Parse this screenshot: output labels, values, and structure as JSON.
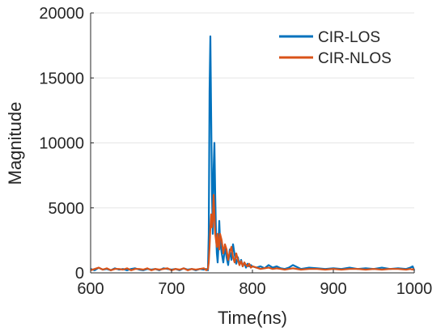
{
  "chart_data": {
    "type": "line",
    "title": "",
    "xlabel": "Time(ns)",
    "ylabel": "Magnitude",
    "xlim": [
      600,
      1000
    ],
    "ylim": [
      0,
      20000
    ],
    "xticks": [
      600,
      700,
      800,
      900,
      1000
    ],
    "yticks": [
      0,
      5000,
      10000,
      15000,
      20000
    ],
    "xtick_labels": [
      "600",
      "700",
      "800",
      "900",
      "1000"
    ],
    "ytick_labels": [
      "0",
      "5000",
      "10000",
      "15000",
      "20000"
    ],
    "grid": "horizontal",
    "legend_position": "top-right",
    "series": [
      {
        "name": "CIR-LOS",
        "color": "#0072BD",
        "x": [
          600,
          605,
          610,
          615,
          620,
          625,
          630,
          635,
          640,
          645,
          650,
          655,
          660,
          665,
          670,
          675,
          680,
          685,
          690,
          695,
          700,
          705,
          710,
          715,
          720,
          725,
          730,
          735,
          740,
          743,
          745,
          746,
          747,
          748,
          749,
          750,
          751,
          752,
          753,
          754,
          755,
          756,
          757,
          758,
          759,
          760,
          762,
          764,
          766,
          768,
          770,
          772,
          774,
          776,
          778,
          780,
          782,
          784,
          786,
          788,
          790,
          792,
          794,
          796,
          798,
          800,
          805,
          810,
          815,
          820,
          825,
          830,
          835,
          840,
          845,
          850,
          860,
          870,
          880,
          890,
          900,
          910,
          920,
          930,
          940,
          950,
          960,
          970,
          980,
          990,
          995,
          998,
          1000
        ],
        "y": [
          300,
          200,
          400,
          250,
          300,
          200,
          350,
          250,
          300,
          200,
          300,
          350,
          250,
          200,
          300,
          250,
          300,
          200,
          350,
          300,
          250,
          300,
          200,
          350,
          250,
          300,
          200,
          300,
          250,
          300,
          200,
          3000,
          14000,
          18200,
          12000,
          6000,
          3000,
          8000,
          10000,
          6000,
          3000,
          1500,
          800,
          2000,
          4000,
          2500,
          1500,
          800,
          2000,
          1200,
          600,
          1800,
          1000,
          2200,
          1400,
          700,
          1200,
          600,
          1000,
          500,
          800,
          400,
          700,
          500,
          600,
          500,
          400,
          500,
          350,
          600,
          400,
          500,
          350,
          300,
          400,
          600,
          300,
          400,
          350,
          300,
          350,
          300,
          400,
          300,
          350,
          300,
          400,
          300,
          350,
          300,
          400,
          500,
          200
        ]
      },
      {
        "name": "CIR-NLOS",
        "color": "#D95319",
        "x": [
          600,
          605,
          610,
          615,
          620,
          625,
          630,
          635,
          640,
          645,
          650,
          655,
          660,
          665,
          670,
          675,
          680,
          685,
          690,
          695,
          700,
          705,
          710,
          715,
          720,
          725,
          730,
          735,
          740,
          743,
          745,
          746,
          747,
          748,
          749,
          750,
          751,
          752,
          753,
          754,
          755,
          756,
          757,
          758,
          759,
          760,
          762,
          764,
          766,
          768,
          770,
          772,
          774,
          776,
          778,
          780,
          782,
          784,
          786,
          788,
          790,
          792,
          794,
          796,
          798,
          800,
          805,
          810,
          815,
          820,
          825,
          830,
          835,
          840,
          845,
          850,
          860,
          870,
          880,
          890,
          900,
          910,
          920,
          930,
          940,
          950,
          960,
          970,
          980,
          990,
          995,
          998,
          1000
        ],
        "y": [
          200,
          300,
          400,
          250,
          350,
          200,
          300,
          300,
          250,
          350,
          200,
          300,
          300,
          250,
          350,
          200,
          300,
          250,
          300,
          350,
          200,
          300,
          250,
          350,
          200,
          300,
          250,
          300,
          350,
          200,
          300,
          800,
          2000,
          3500,
          4500,
          3500,
          4000,
          6000,
          4500,
          3000,
          2500,
          2000,
          3000,
          2200,
          1800,
          3000,
          2500,
          1500,
          2200,
          1800,
          1000,
          1600,
          2000,
          1200,
          800,
          1500,
          1000,
          600,
          900,
          500,
          800,
          600,
          500,
          700,
          400,
          500,
          400,
          300,
          350,
          400,
          300,
          350,
          300,
          250,
          300,
          350,
          250,
          300,
          300,
          250,
          300,
          250,
          300,
          300,
          250,
          300,
          250,
          300,
          300,
          250,
          300,
          250,
          300
        ]
      }
    ]
  }
}
